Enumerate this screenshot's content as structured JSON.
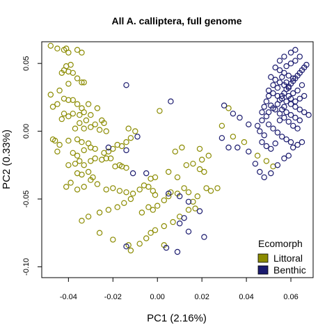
{
  "chart_data": {
    "type": "scatter",
    "title": "All A. calliptera, full genome",
    "xlabel": "PC1 (2.16%)",
    "ylabel": "PC2 (0.33%)",
    "xlim": [
      -0.052,
      0.07
    ],
    "ylim": [
      -0.108,
      0.066
    ],
    "xticks": [
      -0.04,
      -0.02,
      0.0,
      0.02,
      0.04,
      0.06
    ],
    "xtick_labels": [
      "-0.04",
      "-0.02",
      "0.00",
      "0.02",
      "0.04",
      "0.06"
    ],
    "yticks": [
      -0.1,
      -0.05,
      0.0,
      0.05
    ],
    "ytick_labels": [
      "-0.10",
      "-0.05",
      "0.00",
      "0.05"
    ],
    "grid": false,
    "legend": {
      "title": "Ecomorph",
      "placement": "bottom-right",
      "entries": [
        "Littoral",
        "Benthic"
      ]
    },
    "series": [
      {
        "name": "Littoral",
        "color": "#8b8b00",
        "points": [
          [
            -0.048,
            0.063
          ],
          [
            -0.045,
            0.061
          ],
          [
            -0.042,
            0.06
          ],
          [
            -0.041,
            0.061
          ],
          [
            -0.04,
            0.058
          ],
          [
            -0.036,
            0.06
          ],
          [
            -0.034,
            0.058
          ],
          [
            -0.041,
            0.048
          ],
          [
            -0.039,
            0.049
          ],
          [
            -0.042,
            0.045
          ],
          [
            -0.04,
            0.044
          ],
          [
            -0.043,
            0.043
          ],
          [
            -0.038,
            0.043
          ],
          [
            -0.036,
            0.039
          ],
          [
            -0.034,
            0.036
          ],
          [
            -0.033,
            0.036
          ],
          [
            -0.04,
            0.035
          ],
          [
            -0.044,
            0.03
          ],
          [
            -0.048,
            0.027
          ],
          [
            -0.042,
            0.024
          ],
          [
            -0.04,
            0.023
          ],
          [
            -0.045,
            0.02
          ],
          [
            -0.047,
            0.018
          ],
          [
            -0.038,
            0.023
          ],
          [
            -0.036,
            0.02
          ],
          [
            -0.031,
            0.02
          ],
          [
            -0.034,
            0.017
          ],
          [
            -0.042,
            0.013
          ],
          [
            -0.038,
            0.013
          ],
          [
            -0.04,
            0.011
          ],
          [
            -0.043,
            0.009
          ],
          [
            -0.033,
            0.014
          ],
          [
            -0.035,
            0.012
          ],
          [
            -0.03,
            0.012
          ],
          [
            -0.027,
            0.017
          ],
          [
            -0.032,
            0.008
          ],
          [
            -0.035,
            0.006
          ],
          [
            -0.025,
            0.008
          ],
          [
            -0.024,
            0.006
          ],
          [
            -0.028,
            0.005
          ],
          [
            -0.03,
            0.003
          ],
          [
            -0.033,
            0.002
          ],
          [
            -0.037,
            0.002
          ],
          [
            -0.026,
            0.001
          ],
          [
            -0.023,
            -0.0
          ],
          [
            -0.047,
            -0.006
          ],
          [
            -0.046,
            -0.007
          ],
          [
            -0.04,
            -0.007
          ],
          [
            -0.036,
            -0.006
          ],
          [
            -0.034,
            -0.008
          ],
          [
            -0.031,
            -0.009
          ],
          [
            -0.03,
            -0.012
          ],
          [
            -0.044,
            -0.01
          ],
          [
            -0.045,
            -0.015
          ],
          [
            -0.038,
            -0.016
          ],
          [
            -0.036,
            -0.018
          ],
          [
            -0.033,
            -0.014
          ],
          [
            -0.028,
            -0.013
          ],
          [
            -0.024,
            -0.016
          ],
          [
            -0.022,
            -0.015
          ],
          [
            -0.02,
            -0.013
          ],
          [
            -0.018,
            -0.01
          ],
          [
            -0.016,
            -0.011
          ],
          [
            -0.014,
            -0.008
          ],
          [
            -0.012,
            -0.005
          ],
          [
            -0.04,
            -0.025
          ],
          [
            -0.037,
            -0.024
          ],
          [
            -0.035,
            -0.022
          ],
          [
            -0.033,
            -0.025
          ],
          [
            -0.03,
            -0.022
          ],
          [
            -0.028,
            -0.02
          ],
          [
            -0.025,
            -0.021
          ],
          [
            -0.023,
            -0.02
          ],
          [
            -0.021,
            -0.02
          ],
          [
            -0.019,
            -0.026
          ],
          [
            -0.017,
            -0.025
          ],
          [
            -0.016,
            -0.026
          ],
          [
            -0.014,
            -0.027
          ],
          [
            -0.036,
            -0.031
          ],
          [
            -0.034,
            -0.032
          ],
          [
            -0.031,
            -0.03
          ],
          [
            -0.029,
            -0.034
          ],
          [
            -0.039,
            -0.038
          ],
          [
            -0.041,
            -0.041
          ],
          [
            -0.036,
            -0.043
          ],
          [
            -0.033,
            -0.041
          ],
          [
            -0.03,
            -0.036
          ],
          [
            -0.027,
            -0.039
          ],
          [
            -0.023,
            -0.043
          ],
          [
            -0.02,
            -0.042
          ],
          [
            -0.017,
            -0.044
          ],
          [
            -0.014,
            -0.045
          ],
          [
            -0.011,
            -0.046
          ],
          [
            -0.008,
            -0.043
          ],
          [
            -0.006,
            -0.04
          ],
          [
            -0.004,
            -0.041
          ],
          [
            -0.002,
            -0.044
          ],
          [
            -0.001,
            -0.047
          ],
          [
            -0.012,
            -0.05
          ],
          [
            -0.015,
            -0.053
          ],
          [
            -0.018,
            -0.056
          ],
          [
            -0.022,
            -0.058
          ],
          [
            -0.026,
            -0.06
          ],
          [
            -0.031,
            -0.063
          ],
          [
            -0.034,
            -0.066
          ],
          [
            -0.007,
            -0.06
          ],
          [
            -0.004,
            -0.056
          ],
          [
            -0.002,
            -0.058
          ],
          [
            0.0,
            -0.055
          ],
          [
            0.003,
            -0.051
          ],
          [
            0.005,
            -0.048
          ],
          [
            0.006,
            -0.045
          ],
          [
            0.009,
            -0.046
          ],
          [
            -0.026,
            -0.075
          ],
          [
            -0.02,
            -0.08
          ],
          [
            -0.013,
            -0.084
          ],
          [
            -0.012,
            -0.088
          ],
          [
            -0.008,
            -0.083
          ],
          [
            -0.005,
            -0.079
          ],
          [
            -0.003,
            -0.075
          ],
          [
            -0.001,
            -0.073
          ],
          [
            0.003,
            -0.07
          ],
          [
            0.007,
            -0.067
          ],
          [
            0.003,
            -0.084
          ],
          [
            0.01,
            -0.063
          ],
          [
            0.014,
            -0.058
          ],
          [
            0.017,
            -0.057
          ],
          [
            -0.013,
            0.002
          ],
          [
            -0.01,
            0.0
          ],
          [
            0.001,
            0.015
          ],
          [
            -0.003,
            -0.035
          ],
          [
            -0.001,
            -0.034
          ],
          [
            0.005,
            -0.03
          ],
          [
            0.009,
            -0.034
          ],
          [
            0.012,
            -0.042
          ],
          [
            0.014,
            -0.045
          ],
          [
            0.016,
            -0.052
          ],
          [
            0.018,
            -0.048
          ],
          [
            0.013,
            -0.025
          ],
          [
            0.016,
            -0.024
          ],
          [
            0.019,
            -0.028
          ],
          [
            0.021,
            -0.03
          ],
          [
            0.022,
            -0.042
          ],
          [
            0.024,
            -0.044
          ],
          [
            0.027,
            -0.042
          ],
          [
            0.008,
            -0.015
          ],
          [
            0.011,
            -0.012
          ],
          [
            0.019,
            -0.013
          ],
          [
            0.023,
            -0.018
          ],
          [
            0.02,
            -0.021
          ],
          [
            0.032,
            0.017
          ],
          [
            0.029,
            0.004
          ],
          [
            0.034,
            -0.004
          ],
          [
            0.039,
            -0.008
          ],
          [
            0.045,
            -0.018
          ],
          [
            0.049,
            -0.022
          ],
          [
            0.052,
            -0.026
          ]
        ]
      },
      {
        "name": "Benthic",
        "color": "#1a1a6e",
        "points": [
          [
            -0.014,
            0.034
          ],
          [
            0.006,
            0.022
          ],
          [
            -0.009,
            -0.004
          ],
          [
            -0.022,
            -0.012
          ],
          [
            -0.014,
            -0.014
          ],
          [
            -0.011,
            -0.031
          ],
          [
            -0.005,
            -0.031
          ],
          [
            0.005,
            -0.046
          ],
          [
            0.01,
            -0.048
          ],
          [
            0.014,
            -0.052
          ],
          [
            0.019,
            -0.059
          ],
          [
            0.012,
            -0.064
          ],
          [
            0.01,
            -0.068
          ],
          [
            0.014,
            -0.074
          ],
          [
            0.021,
            -0.078
          ],
          [
            0.004,
            -0.086
          ],
          [
            0.009,
            -0.089
          ],
          [
            -0.014,
            -0.085
          ],
          [
            0.029,
            -0.005
          ],
          [
            0.032,
            -0.012
          ],
          [
            0.036,
            -0.012
          ],
          [
            0.041,
            -0.015
          ],
          [
            0.044,
            -0.024
          ],
          [
            0.046,
            -0.03
          ],
          [
            0.048,
            -0.034
          ],
          [
            0.051,
            -0.031
          ],
          [
            0.054,
            -0.025
          ],
          [
            0.057,
            -0.02
          ],
          [
            0.059,
            -0.018
          ],
          [
            0.061,
            -0.012
          ],
          [
            0.063,
            -0.01
          ],
          [
            0.065,
            -0.008
          ],
          [
            0.03,
            0.019
          ],
          [
            0.034,
            0.013
          ],
          [
            0.037,
            0.01
          ],
          [
            0.041,
            0.005
          ],
          [
            0.045,
            0.004
          ],
          [
            0.047,
            0.008
          ],
          [
            0.049,
            0.011
          ],
          [
            0.05,
            0.014
          ],
          [
            0.052,
            0.017
          ],
          [
            0.054,
            0.02
          ],
          [
            0.055,
            0.023
          ],
          [
            0.056,
            0.026
          ],
          [
            0.057,
            0.028
          ],
          [
            0.058,
            0.031
          ],
          [
            0.059,
            0.033
          ],
          [
            0.06,
            0.035
          ],
          [
            0.061,
            0.037
          ],
          [
            0.062,
            0.039
          ],
          [
            0.063,
            0.041
          ],
          [
            0.064,
            0.043
          ],
          [
            0.065,
            0.045
          ],
          [
            0.066,
            0.047
          ],
          [
            0.067,
            0.049
          ],
          [
            0.055,
            0.052
          ],
          [
            0.057,
            0.055
          ],
          [
            0.06,
            0.058
          ],
          [
            0.062,
            0.06
          ],
          [
            0.064,
            0.055
          ],
          [
            0.053,
            0.047
          ],
          [
            0.055,
            0.045
          ],
          [
            0.057,
            0.043
          ],
          [
            0.059,
            0.041
          ],
          [
            0.061,
            0.039
          ],
          [
            0.051,
            0.04
          ],
          [
            0.053,
            0.038
          ],
          [
            0.055,
            0.036
          ],
          [
            0.057,
            0.034
          ],
          [
            0.059,
            0.032
          ],
          [
            0.05,
            0.03
          ],
          [
            0.052,
            0.028
          ],
          [
            0.054,
            0.026
          ],
          [
            0.056,
            0.024
          ],
          [
            0.058,
            0.022
          ],
          [
            0.06,
            0.02
          ],
          [
            0.062,
            0.018
          ],
          [
            0.064,
            0.016
          ],
          [
            0.066,
            0.014
          ],
          [
            0.068,
            0.012
          ],
          [
            0.049,
            0.022
          ],
          [
            0.051,
            0.019
          ],
          [
            0.053,
            0.016
          ],
          [
            0.055,
            0.013
          ],
          [
            0.057,
            0.01
          ],
          [
            0.059,
            0.007
          ],
          [
            0.061,
            0.004
          ],
          [
            0.063,
            0.002
          ],
          [
            0.05,
            0.005
          ],
          [
            0.052,
            0.002
          ],
          [
            0.054,
            -0.001
          ],
          [
            0.056,
            -0.004
          ],
          [
            0.058,
            -0.006
          ],
          [
            0.06,
            -0.008
          ],
          [
            0.048,
            -0.003
          ],
          [
            0.046,
            0.0
          ],
          [
            0.047,
            -0.008
          ],
          [
            0.049,
            -0.011
          ],
          [
            0.051,
            -0.013
          ],
          [
            0.053,
            -0.009
          ],
          [
            0.055,
            0.008
          ],
          [
            0.057,
            0.018
          ],
          [
            0.059,
            0.026
          ],
          [
            0.061,
            0.028
          ],
          [
            0.063,
            0.03
          ],
          [
            0.065,
            0.034
          ],
          [
            0.058,
            0.048
          ],
          [
            0.06,
            0.05
          ],
          [
            0.062,
            0.052
          ],
          [
            0.056,
            0.04
          ],
          [
            0.058,
            0.036
          ],
          [
            0.06,
            0.024
          ],
          [
            0.062,
            0.022
          ],
          [
            0.064,
            0.024
          ],
          [
            0.066,
            0.026
          ],
          [
            0.056,
            0.016
          ],
          [
            0.058,
            0.014
          ],
          [
            0.06,
            0.012
          ],
          [
            0.062,
            0.01
          ],
          [
            0.064,
            0.008
          ],
          [
            0.052,
            0.034
          ],
          [
            0.054,
            0.032
          ],
          [
            0.05,
            0.026
          ],
          [
            0.048,
            0.018
          ],
          [
            0.047,
            0.014
          ]
        ]
      }
    ]
  }
}
